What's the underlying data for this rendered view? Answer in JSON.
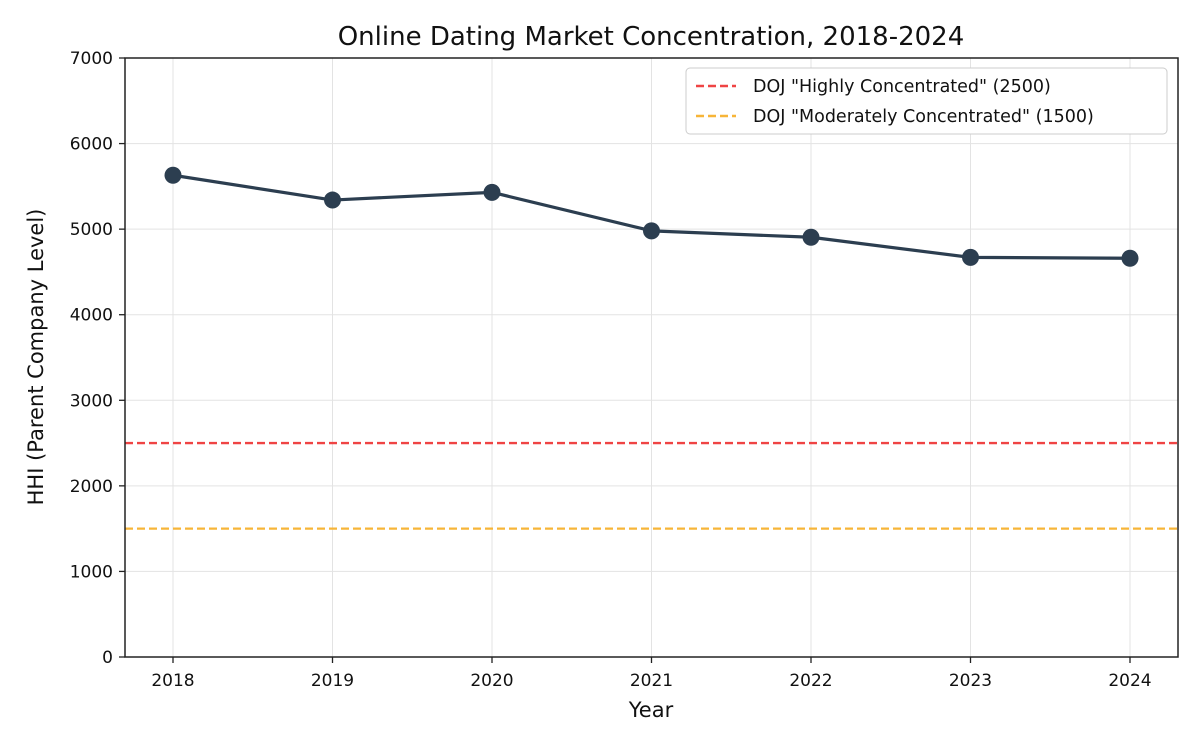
{
  "chart_data": {
    "type": "line",
    "title": "Online Dating Market Concentration, 2018-2024",
    "xlabel": "Year",
    "ylabel": "HHI (Parent Company Level)",
    "categories": [
      "2018",
      "2019",
      "2020",
      "2021",
      "2022",
      "2023",
      "2024"
    ],
    "y_ticks": [
      "0",
      "1000",
      "2000",
      "3000",
      "4000",
      "5000",
      "6000",
      "7000"
    ],
    "ylim": [
      0,
      7000
    ],
    "grid": true,
    "legend_position": "top-right",
    "series": [
      {
        "values": [
          5630,
          5340,
          5430,
          4980,
          4905,
          4670,
          4660
        ],
        "color": "#2c3e50"
      }
    ],
    "reference_lines": [
      {
        "name": "DOJ \"Highly Concentrated\" (2500)",
        "value": 2500,
        "color": "#ef4444"
      },
      {
        "name": "DOJ \"Moderately Concentrated\" (1500)",
        "value": 1500,
        "color": "#f7b538"
      }
    ]
  }
}
